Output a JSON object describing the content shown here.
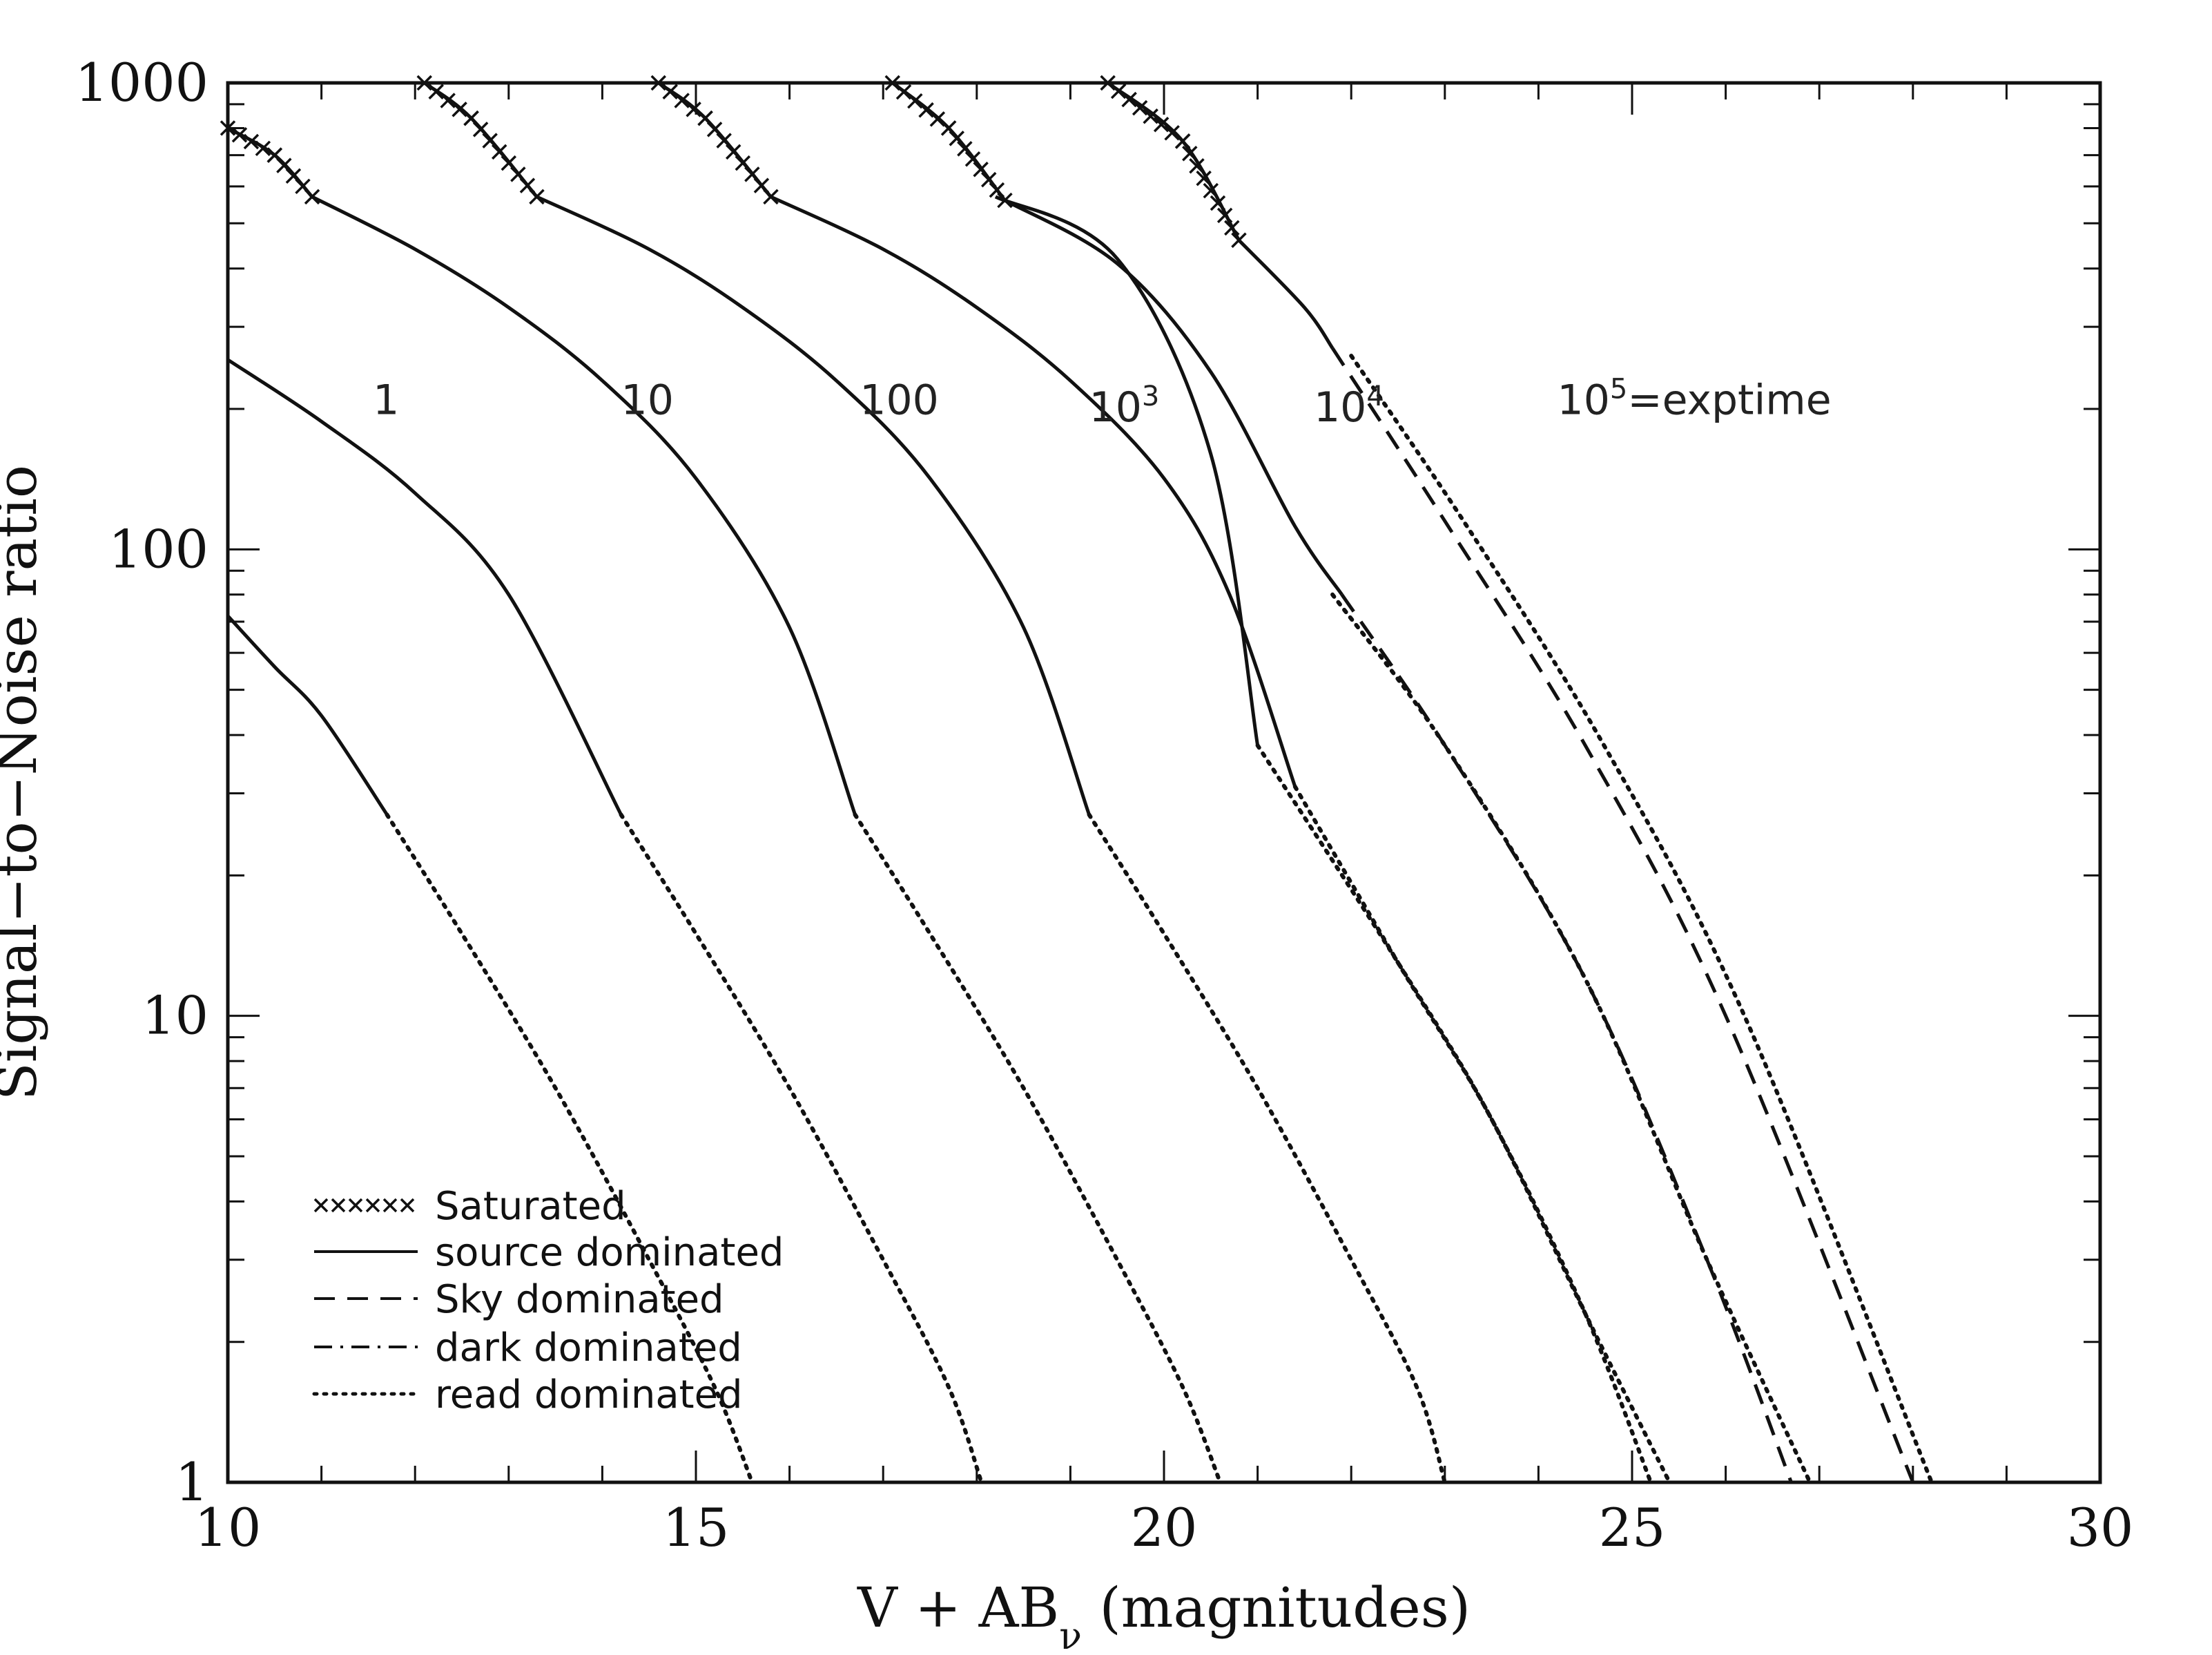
{
  "chart_data": {
    "type": "line",
    "title": "",
    "xlabel": {
      "main": "V + AB",
      "sub": "ν",
      "suffix": " (magnitudes)"
    },
    "ylabel": "Signal−to−Noise ratio",
    "xlim": [
      10,
      30
    ],
    "ylim": [
      1,
      1000
    ],
    "yscale": "log",
    "grid": false,
    "x_ticks": [
      10,
      15,
      20,
      25,
      30
    ],
    "y_ticks": [
      1,
      10,
      100,
      1000
    ],
    "curve_labels": [
      {
        "text": "1",
        "sup": "",
        "x": 11.55,
        "y": 195
      },
      {
        "text": "10",
        "sup": "",
        "x": 14.2,
        "y": 195
      },
      {
        "text": "100",
        "sup": "",
        "x": 16.75,
        "y": 195
      },
      {
        "text": "10",
        "sup": "3",
        "x": 19.2,
        "y": 188
      },
      {
        "text": "10",
        "sup": "4",
        "x": 21.6,
        "y": 188
      },
      {
        "text": "10",
        "sup": "5",
        "suffix": "=exptime",
        "x": 24.2,
        "y": 195
      }
    ],
    "legend": {
      "position": "bottom-left",
      "entries": [
        {
          "label": "Saturated",
          "style": "crosses"
        },
        {
          "label": "source dominated",
          "style": "solid"
        },
        {
          "label": "Sky dominated",
          "style": "dashed"
        },
        {
          "label": "dark dominated",
          "style": "dashdot"
        },
        {
          "label": "read dominated",
          "style": "dotted"
        }
      ]
    },
    "series": [
      {
        "segments": [
          {
            "style": "solid",
            "points": [
              [
                10.0,
                72
              ],
              [
                10.5,
                56
              ],
              [
                11.0,
                44
              ],
              [
                11.7,
                27
              ]
            ]
          },
          {
            "style": "dotted",
            "points": [
              [
                11.7,
                27
              ],
              [
                12.5,
                15
              ],
              [
                13.5,
                7
              ],
              [
                14.5,
                3
              ],
              [
                15.2,
                1.6
              ],
              [
                15.6,
                1
              ]
            ]
          }
        ]
      },
      {
        "segments": [
          {
            "style": "solid",
            "points": [
              [
                10.0,
                255
              ],
              [
                11.0,
                188
              ],
              [
                12.0,
                132
              ],
              [
                13.0,
                80
              ],
              [
                14.2,
                27
              ]
            ]
          },
          {
            "style": "dotted",
            "points": [
              [
                14.2,
                27
              ],
              [
                15.0,
                15
              ],
              [
                16.0,
                7
              ],
              [
                17.0,
                3
              ],
              [
                17.7,
                1.6
              ],
              [
                18.05,
                1
              ]
            ]
          }
        ]
      },
      {
        "segments": [
          {
            "style": "crosses",
            "points": [
              [
                10.0,
                800
              ],
              [
                10.5,
                700
              ],
              [
                10.9,
                570
              ]
            ]
          },
          {
            "style": "solid",
            "points": [
              [
                10.9,
                570
              ],
              [
                12.0,
                440
              ],
              [
                13.0,
                330
              ],
              [
                14.0,
                230
              ],
              [
                15.0,
                142
              ],
              [
                16.0,
                68
              ],
              [
                16.7,
                27
              ]
            ]
          },
          {
            "style": "dotted",
            "points": [
              [
                16.7,
                27
              ],
              [
                17.5,
                15
              ],
              [
                18.5,
                7
              ],
              [
                19.5,
                3
              ],
              [
                20.2,
                1.6
              ],
              [
                20.6,
                1
              ]
            ]
          }
        ]
      },
      {
        "segments": [
          {
            "style": "crosses",
            "points": [
              [
                12.1,
                1000
              ],
              [
                12.6,
                840
              ],
              [
                13.3,
                570
              ]
            ]
          },
          {
            "style": "solid",
            "points": [
              [
                13.3,
                570
              ],
              [
                14.5,
                440
              ],
              [
                15.5,
                330
              ],
              [
                16.5,
                230
              ],
              [
                17.5,
                142
              ],
              [
                18.5,
                68
              ],
              [
                19.2,
                27
              ]
            ]
          },
          {
            "style": "dotted",
            "points": [
              [
                19.2,
                27
              ],
              [
                20.0,
                15
              ],
              [
                21.0,
                7
              ],
              [
                22.0,
                3
              ],
              [
                22.7,
                1.6
              ],
              [
                23.0,
                1
              ]
            ]
          }
        ]
      },
      {
        "segments": [
          {
            "style": "crosses",
            "points": [
              [
                14.6,
                1000
              ],
              [
                15.1,
                840
              ],
              [
                15.8,
                570
              ]
            ]
          },
          {
            "style": "solid",
            "points": [
              [
                15.8,
                570
              ],
              [
                17.0,
                440
              ],
              [
                18.0,
                330
              ],
              [
                19.0,
                230
              ],
              [
                20.0,
                142
              ],
              [
                20.7,
                80
              ],
              [
                21.4,
                31
              ]
            ]
          },
          {
            "style": "dotted",
            "points": [
              [
                21.4,
                31
              ],
              [
                22.5,
                13
              ],
              [
                23.5,
                6
              ],
              [
                24.5,
                2.3
              ],
              [
                25.4,
                1
              ]
            ]
          }
        ]
      },
      {
        "segments": [
          {
            "style": "solid",
            "points": [
              [
                18.2,
                570
              ],
              [
                19.5,
                420
              ],
              [
                20.5,
                160
              ],
              [
                21.0,
                38
              ]
            ]
          },
          {
            "style": "dotted",
            "points": [
              [
                21.0,
                38
              ],
              [
                22.5,
                13
              ],
              [
                23.5,
                6
              ],
              [
                24.5,
                2.3
              ],
              [
                25.2,
                1
              ]
            ]
          }
        ]
      },
      {
        "segments": [
          {
            "style": "crosses",
            "points": [
              [
                17.1,
                1000
              ],
              [
                17.7,
                800
              ],
              [
                18.3,
                560
              ]
            ]
          },
          {
            "style": "solid",
            "points": [
              [
                18.3,
                560
              ],
              [
                19.5,
                410
              ],
              [
                20.5,
                240
              ],
              [
                21.4,
                112
              ],
              [
                21.9,
                80
              ]
            ]
          },
          {
            "style": "dashed",
            "points": [
              [
                21.9,
                80
              ],
              [
                23.0,
                38
              ],
              [
                24.5,
                12
              ],
              [
                25.8,
                3
              ],
              [
                26.7,
                1
              ]
            ]
          }
        ]
      },
      {
        "segments": [
          {
            "style": "crosses",
            "points": [
              [
                19.4,
                1000
              ],
              [
                20.2,
                750
              ],
              [
                20.8,
                460
              ]
            ]
          },
          {
            "style": "solid",
            "points": [
              [
                20.8,
                460
              ],
              [
                21.5,
                330
              ],
              [
                21.8,
                270
              ]
            ]
          },
          {
            "style": "dashed",
            "points": [
              [
                21.8,
                270
              ],
              [
                23.0,
                115
              ],
              [
                24.5,
                38
              ],
              [
                26.0,
                10
              ],
              [
                28.0,
                1
              ]
            ]
          }
        ]
      },
      {
        "segments": [
          {
            "style": "dotted",
            "points": [
              [
                21.8,
                80
              ],
              [
                23.0,
                38
              ],
              [
                24.5,
                12
              ],
              [
                25.8,
                3
              ],
              [
                26.9,
                1
              ]
            ]
          }
        ]
      },
      {
        "segments": [
          {
            "style": "dotted",
            "points": [
              [
                22.0,
                260
              ],
              [
                23.2,
                115
              ],
              [
                24.7,
                38
              ],
              [
                26.2,
                10
              ],
              [
                28.2,
                1
              ]
            ]
          }
        ]
      }
    ]
  }
}
